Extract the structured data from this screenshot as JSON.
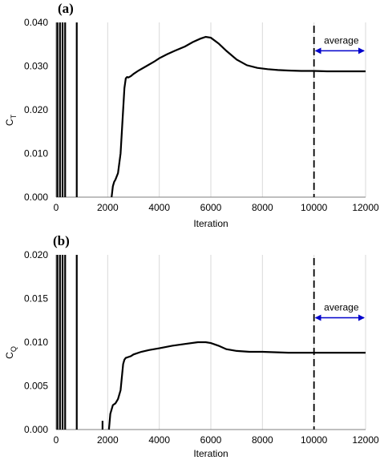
{
  "chart_data": [
    {
      "type": "line",
      "panel_label": "(a)",
      "xlabel": "Iteration",
      "ylabel_main": "C",
      "ylabel_sub": "T",
      "xlim": [
        0,
        12000
      ],
      "ylim": [
        0,
        0.04
      ],
      "x_ticks": [
        "0",
        "2000",
        "4000",
        "6000",
        "8000",
        "10000",
        "12000"
      ],
      "y_ticks": [
        "0.000",
        "0.010",
        "0.020",
        "0.030",
        "0.040"
      ],
      "grid": "vertical",
      "series": [
        {
          "x": [
            2150,
            2200,
            2250,
            2300,
            2400,
            2500,
            2550,
            2600,
            2650,
            2700,
            2750,
            2800,
            2900,
            3000,
            3200,
            3500,
            3800,
            4000,
            4300,
            4600,
            5000,
            5300,
            5600,
            5800,
            6000,
            6300,
            6600,
            7000,
            7400,
            7800,
            8200,
            8600,
            9000,
            9500,
            10000,
            10500,
            11000,
            11500,
            12000
          ],
          "y": [
            0.0,
            0.0025,
            0.0035,
            0.004,
            0.0055,
            0.01,
            0.015,
            0.02,
            0.025,
            0.0272,
            0.0275,
            0.0274,
            0.0277,
            0.0282,
            0.029,
            0.03,
            0.031,
            0.0318,
            0.0327,
            0.0335,
            0.0345,
            0.0355,
            0.0363,
            0.0367,
            0.0365,
            0.0352,
            0.0335,
            0.0315,
            0.0302,
            0.0296,
            0.0293,
            0.0291,
            0.029,
            0.0289,
            0.0289,
            0.0288,
            0.0288,
            0.0288,
            0.0288
          ]
        }
      ],
      "early_spikes_x": [
        50,
        150,
        250,
        350,
        800
      ],
      "average_line_x": 10000,
      "average_label": "average",
      "average_arrow_y": 0.0335
    },
    {
      "type": "line",
      "panel_label": "(b)",
      "xlabel": "Iteration",
      "ylabel_main": "C",
      "ylabel_sub": "Q",
      "xlim": [
        0,
        12000
      ],
      "ylim": [
        0,
        0.02
      ],
      "x_ticks": [
        "0",
        "2000",
        "4000",
        "6000",
        "8000",
        "10000",
        "12000"
      ],
      "y_ticks": [
        "0.000",
        "0.005",
        "0.010",
        "0.015",
        "0.020"
      ],
      "grid": "vertical",
      "series": [
        {
          "x": [
            2050,
            2100,
            2200,
            2300,
            2400,
            2500,
            2550,
            2600,
            2650,
            2700,
            2800,
            2900,
            3000,
            3300,
            3600,
            4000,
            4500,
            5000,
            5500,
            5800,
            6000,
            6300,
            6600,
            7000,
            7500,
            8000,
            9000,
            10000,
            11000,
            12000
          ],
          "y": [
            0.0,
            0.0018,
            0.0028,
            0.003,
            0.0035,
            0.0045,
            0.006,
            0.0075,
            0.008,
            0.0082,
            0.0083,
            0.0084,
            0.0086,
            0.0089,
            0.0091,
            0.0093,
            0.0096,
            0.0098,
            0.01,
            0.01,
            0.0099,
            0.0096,
            0.0092,
            0.009,
            0.0089,
            0.0089,
            0.0088,
            0.0088,
            0.0088,
            0.0088
          ]
        }
      ],
      "early_spikes_x": [
        50,
        150,
        250,
        350,
        800
      ],
      "small_spike": {
        "x": 1800,
        "y": 0.001
      },
      "average_line_x": 10000,
      "average_label": "average",
      "average_arrow_y": 0.0128
    }
  ]
}
